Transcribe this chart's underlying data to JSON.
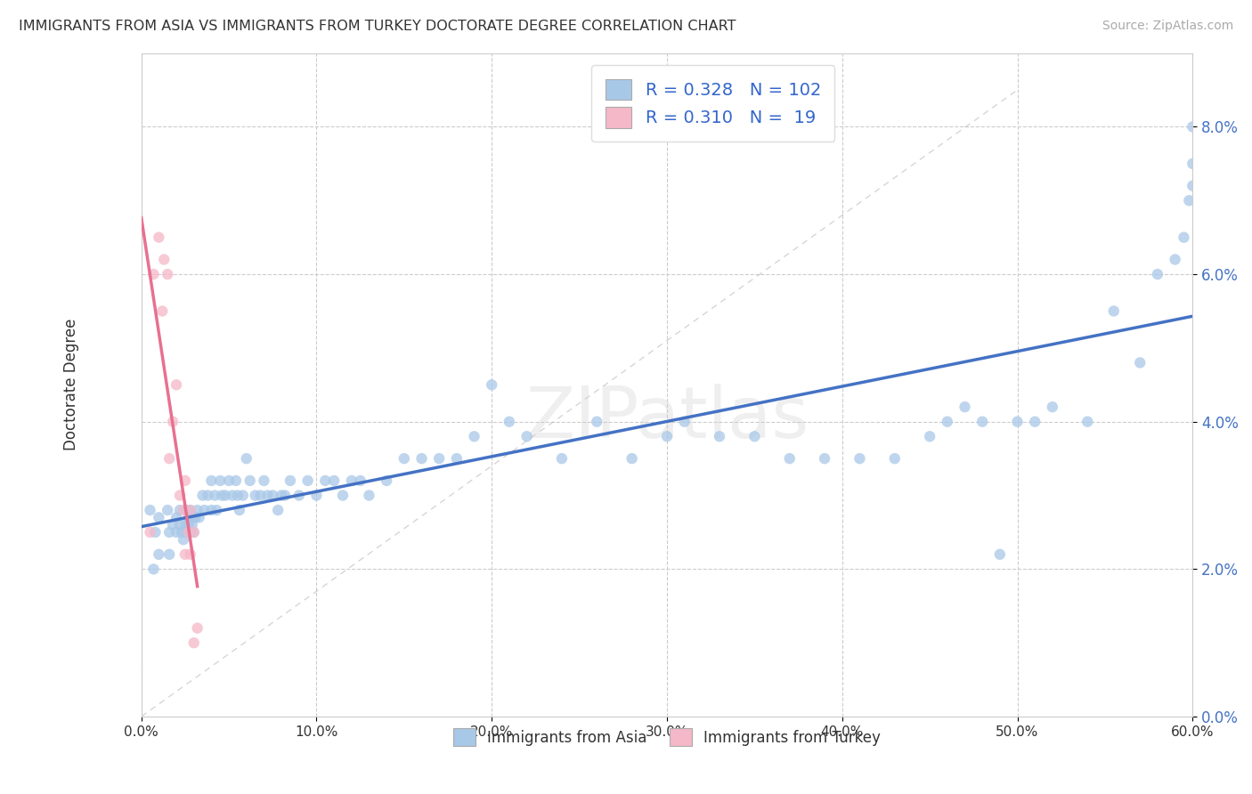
{
  "title": "IMMIGRANTS FROM ASIA VS IMMIGRANTS FROM TURKEY DOCTORATE DEGREE CORRELATION CHART",
  "source": "Source: ZipAtlas.com",
  "ylabel": "Doctorate Degree",
  "legend_label1": "Immigrants from Asia",
  "legend_label2": "Immigrants from Turkey",
  "R1": 0.328,
  "N1": 102,
  "R2": 0.31,
  "N2": 19,
  "color_asia": "#A8C8E8",
  "color_turkey": "#F5B8C8",
  "trendline_color_asia": "#4472C4",
  "trendline_color_turkey": "#E87090",
  "xlim": [
    0.0,
    0.6
  ],
  "ylim": [
    0.0,
    0.09
  ],
  "xticks": [
    0.0,
    0.1,
    0.2,
    0.3,
    0.4,
    0.5,
    0.6
  ],
  "yticks": [
    0.0,
    0.02,
    0.04,
    0.06,
    0.08
  ],
  "watermark": "ZIPatlas",
  "background": "#FFFFFF",
  "asia_x": [
    0.005,
    0.007,
    0.008,
    0.01,
    0.01,
    0.015,
    0.016,
    0.016,
    0.018,
    0.02,
    0.02,
    0.022,
    0.022,
    0.023,
    0.024,
    0.025,
    0.026,
    0.026,
    0.027,
    0.027,
    0.028,
    0.028,
    0.029,
    0.03,
    0.03,
    0.031,
    0.032,
    0.033,
    0.035,
    0.036,
    0.038,
    0.04,
    0.04,
    0.042,
    0.043,
    0.045,
    0.046,
    0.048,
    0.05,
    0.052,
    0.054,
    0.055,
    0.056,
    0.058,
    0.06,
    0.062,
    0.065,
    0.068,
    0.07,
    0.072,
    0.075,
    0.078,
    0.08,
    0.082,
    0.085,
    0.09,
    0.095,
    0.1,
    0.105,
    0.11,
    0.115,
    0.12,
    0.125,
    0.13,
    0.14,
    0.15,
    0.16,
    0.17,
    0.18,
    0.19,
    0.2,
    0.21,
    0.22,
    0.24,
    0.26,
    0.28,
    0.3,
    0.31,
    0.33,
    0.35,
    0.37,
    0.39,
    0.41,
    0.43,
    0.45,
    0.46,
    0.47,
    0.48,
    0.49,
    0.5,
    0.51,
    0.52,
    0.54,
    0.555,
    0.57,
    0.58,
    0.59,
    0.595,
    0.598,
    0.6,
    0.6,
    0.6
  ],
  "asia_y": [
    0.028,
    0.02,
    0.025,
    0.027,
    0.022,
    0.028,
    0.025,
    0.022,
    0.026,
    0.025,
    0.027,
    0.026,
    0.028,
    0.025,
    0.024,
    0.026,
    0.028,
    0.025,
    0.027,
    0.026,
    0.028,
    0.025,
    0.026,
    0.027,
    0.025,
    0.027,
    0.028,
    0.027,
    0.03,
    0.028,
    0.03,
    0.032,
    0.028,
    0.03,
    0.028,
    0.032,
    0.03,
    0.03,
    0.032,
    0.03,
    0.032,
    0.03,
    0.028,
    0.03,
    0.035,
    0.032,
    0.03,
    0.03,
    0.032,
    0.03,
    0.03,
    0.028,
    0.03,
    0.03,
    0.032,
    0.03,
    0.032,
    0.03,
    0.032,
    0.032,
    0.03,
    0.032,
    0.032,
    0.03,
    0.032,
    0.035,
    0.035,
    0.035,
    0.035,
    0.038,
    0.045,
    0.04,
    0.038,
    0.035,
    0.04,
    0.035,
    0.038,
    0.04,
    0.038,
    0.038,
    0.035,
    0.035,
    0.035,
    0.035,
    0.038,
    0.04,
    0.042,
    0.04,
    0.022,
    0.04,
    0.04,
    0.042,
    0.04,
    0.055,
    0.048,
    0.06,
    0.062,
    0.065,
    0.07,
    0.072,
    0.075,
    0.08
  ],
  "turkey_x": [
    0.005,
    0.007,
    0.01,
    0.012,
    0.013,
    0.015,
    0.016,
    0.018,
    0.02,
    0.022,
    0.024,
    0.025,
    0.025,
    0.027,
    0.028,
    0.028,
    0.03,
    0.03,
    0.032
  ],
  "turkey_y": [
    0.025,
    0.06,
    0.065,
    0.055,
    0.062,
    0.06,
    0.035,
    0.04,
    0.045,
    0.03,
    0.028,
    0.032,
    0.022,
    0.025,
    0.028,
    0.022,
    0.025,
    0.01,
    0.012
  ],
  "turkey_trend_x0": 0.0,
  "turkey_trend_x1": 0.032,
  "asia_trend_x0": 0.0,
  "asia_trend_x1": 0.6
}
